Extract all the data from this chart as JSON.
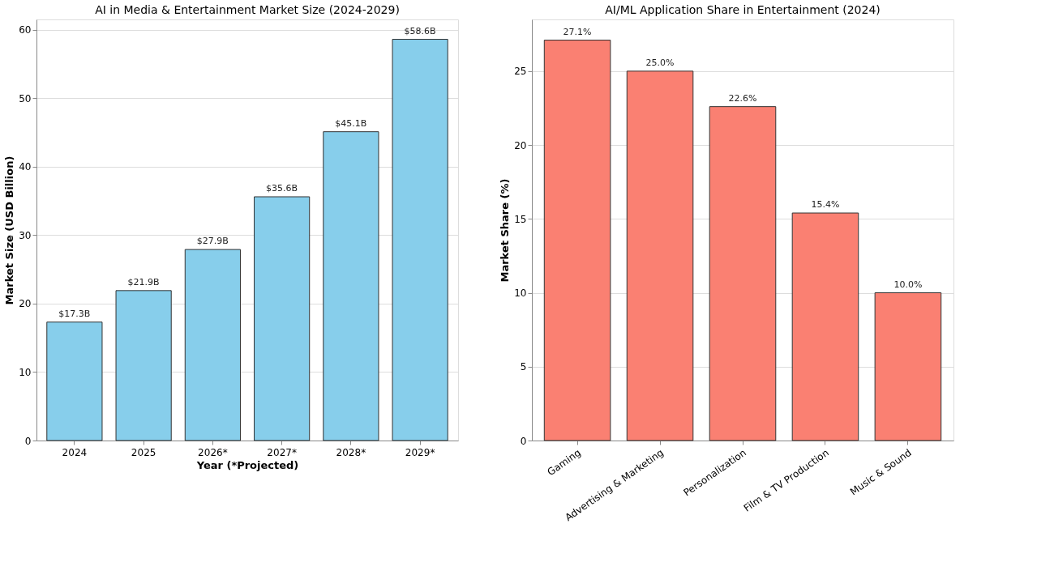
{
  "chart_data": [
    {
      "type": "bar",
      "title": "AI in Media & Entertainment Market Size (2024-2029)",
      "xlabel": "Year (*Projected)",
      "ylabel": "Market Size (USD Billion)",
      "categories": [
        "2024",
        "2025",
        "2026*",
        "2027*",
        "2028*",
        "2029*"
      ],
      "values": [
        17.3,
        21.9,
        27.9,
        35.6,
        45.1,
        58.6
      ],
      "color": "#87ceeb",
      "value_labels": [
        "$17.3B",
        "$21.9B",
        "$27.9B",
        "$35.6B",
        "$45.1B",
        "$58.6B"
      ],
      "ylim": [
        0,
        61.5
      ],
      "yticks": [
        0,
        10,
        20,
        30,
        40,
        50,
        60
      ],
      "grid": "y"
    },
    {
      "type": "bar",
      "title": "AI/ML Application Share in Entertainment (2024)",
      "ylabel": "Market Share (%)",
      "categories": [
        "Gaming",
        "Advertising & Marketing",
        "Personalization",
        "Film & TV Production",
        "Music & Sound"
      ],
      "values": [
        27.1,
        25.0,
        22.6,
        15.4,
        10.0
      ],
      "color": "#fa8072",
      "value_labels": [
        "27.1%",
        "25.0%",
        "22.6%",
        "15.4%",
        "10.0%"
      ],
      "ylim": [
        0,
        28.5
      ],
      "yticks": [
        0,
        5,
        10,
        15,
        20,
        25
      ],
      "grid": "y"
    }
  ]
}
